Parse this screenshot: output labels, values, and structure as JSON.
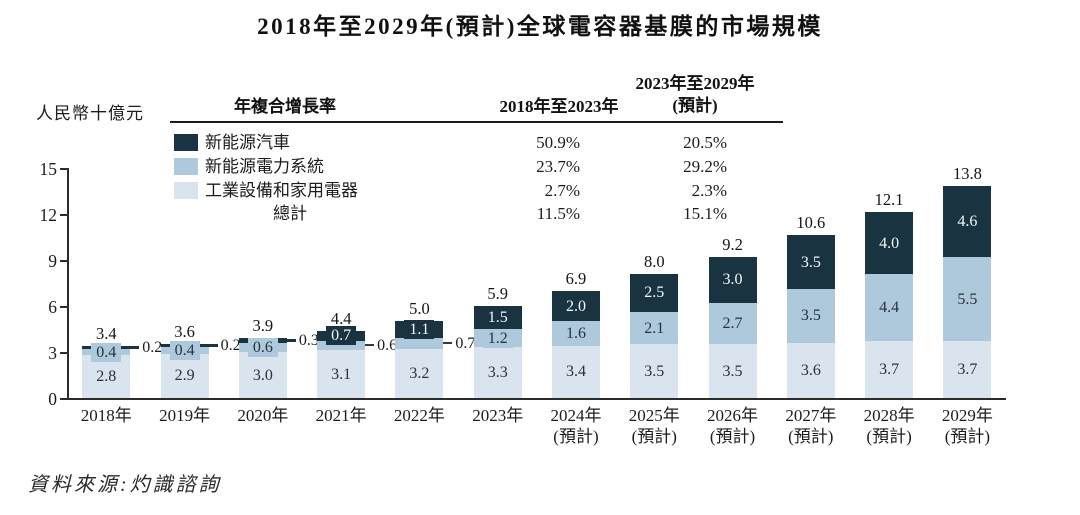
{
  "colors": {
    "dark": "#1a3340",
    "medium": "#aec9db",
    "light": "#d9e4ee",
    "axis": "#2b2b2b"
  },
  "table": {
    "col1_header": "年複合增長率",
    "col2_header": "2018年至2023年",
    "col3_header_line1": "2023年至2029年",
    "col3_header_line2": "(預計)",
    "rows": [
      {
        "label": "新能源汽車",
        "swatch": "dark",
        "cagr_2018_2023": "50.9%",
        "cagr_2023_2029": "20.5%"
      },
      {
        "label": "新能源電力系統",
        "swatch": "medium",
        "cagr_2018_2023": "23.7%",
        "cagr_2023_2029": "29.2%"
      },
      {
        "label": "工業設備和家用電器",
        "swatch": "light",
        "cagr_2018_2023": "2.7%",
        "cagr_2023_2029": "2.3%"
      },
      {
        "label": "總計",
        "swatch": null,
        "cagr_2018_2023": "11.5%",
        "cagr_2023_2029": "15.1%"
      }
    ]
  },
  "source": "資料來源:灼識諮詢",
  "chart_data": {
    "type": "bar",
    "stacked": true,
    "title": "2018年至2029年(預計)全球電容器基膜的市場規模",
    "ylabel": "人民幣十億元",
    "xlabel": "",
    "ylim": [
      0,
      15
    ],
    "yticks": [
      0,
      3,
      6,
      9,
      12,
      15
    ],
    "grid": false,
    "legend_position": "top-left",
    "categories": [
      {
        "label": "2018年",
        "sub": ""
      },
      {
        "label": "2019年",
        "sub": ""
      },
      {
        "label": "2020年",
        "sub": ""
      },
      {
        "label": "2021年",
        "sub": ""
      },
      {
        "label": "2022年",
        "sub": ""
      },
      {
        "label": "2023年",
        "sub": ""
      },
      {
        "label": "2024年",
        "sub": "(預計)"
      },
      {
        "label": "2025年",
        "sub": "(預計)"
      },
      {
        "label": "2026年",
        "sub": "(預計)"
      },
      {
        "label": "2027年",
        "sub": "(預計)"
      },
      {
        "label": "2028年",
        "sub": "(預計)"
      },
      {
        "label": "2029年",
        "sub": "(預計)"
      }
    ],
    "series": [
      {
        "name": "工業設備和家用電器",
        "color_key": "light",
        "values": [
          2.8,
          2.9,
          3.0,
          3.1,
          3.2,
          3.3,
          3.4,
          3.5,
          3.5,
          3.6,
          3.7,
          3.7
        ]
      },
      {
        "name": "新能源電力系統",
        "color_key": "medium",
        "values": [
          0.4,
          0.4,
          0.6,
          0.6,
          0.7,
          1.2,
          1.6,
          2.1,
          2.7,
          3.5,
          4.4,
          5.5
        ]
      },
      {
        "name": "新能源汽車",
        "color_key": "dark",
        "values": [
          0.2,
          0.2,
          0.3,
          0.7,
          1.1,
          1.5,
          2.0,
          2.5,
          3.0,
          3.5,
          4.0,
          4.6
        ]
      }
    ],
    "totals_display": [
      "3.4",
      "3.6",
      "3.9",
      "4.4",
      "5.0",
      "5.9",
      "6.9",
      "8.0",
      "9.2",
      "10.6",
      "12.1",
      "13.8"
    ],
    "outside_label_segment": [
      "dark",
      "dark",
      "dark",
      "medium",
      "medium",
      null,
      null,
      null,
      null,
      null,
      null,
      null
    ]
  }
}
